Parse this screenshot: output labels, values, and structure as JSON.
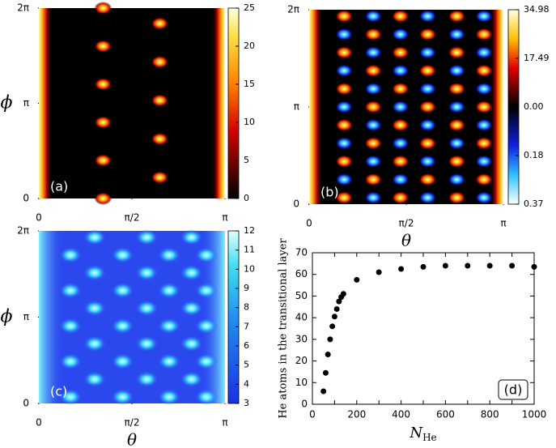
{
  "chart_data": [
    {
      "type": "heatmap",
      "panel_label": "(a)",
      "ylabel": "ϕ",
      "xlim": [
        0,
        3.14159
      ],
      "ylim": [
        0,
        6.28319
      ],
      "xticks": [
        0,
        {
          "value": 1.5708,
          "label": "π/2"
        },
        {
          "value": 3.14159,
          "label": "π"
        }
      ],
      "yticks": [
        0,
        {
          "value": 3.14159,
          "label": "π"
        },
        {
          "value": 6.28319,
          "label": "2π"
        }
      ],
      "clim": [
        0,
        25
      ],
      "cticks": [
        0,
        5,
        10,
        15,
        20,
        25
      ]
    },
    {
      "type": "heatmap",
      "panel_label": "(b)",
      "xlabel": "θ",
      "xlim": [
        0,
        3.14159
      ],
      "ylim": [
        0,
        6.28319
      ],
      "xticks": [
        0,
        {
          "value": 1.5708,
          "label": "π/2"
        },
        {
          "value": 3.14159,
          "label": "π"
        }
      ],
      "yticks": [
        0,
        {
          "value": 3.14159,
          "label": "π"
        },
        {
          "value": 6.28319,
          "label": "2π"
        }
      ],
      "cticks": [
        34.98,
        17.49,
        {
          "value": 0,
          "label": "0.00"
        },
        0.18,
        0.37
      ]
    },
    {
      "type": "heatmap",
      "panel_label": "(c)",
      "ylabel": "ϕ",
      "xlabel": "θ",
      "xlim": [
        0,
        3.14159
      ],
      "ylim": [
        0,
        6.28319
      ],
      "xticks": [
        0,
        {
          "value": 1.5708,
          "label": "π/2"
        },
        {
          "value": 3.14159,
          "label": "π"
        }
      ],
      "yticks": [
        0,
        {
          "value": 3.14159,
          "label": "π"
        },
        {
          "value": 6.28319,
          "label": "2π"
        }
      ],
      "clim": [
        3,
        12
      ],
      "cticks": [
        3,
        4,
        5,
        6,
        7,
        8,
        9,
        10,
        11,
        12
      ]
    },
    {
      "type": "scatter",
      "panel_label": "(d)",
      "ylabel": "He atoms in the transitional layer",
      "xlabel": "N",
      "xlabel_sub": "He",
      "color": "#000000",
      "x": [
        50,
        60,
        70,
        80,
        90,
        100,
        110,
        120,
        130,
        140,
        200,
        300,
        400,
        500,
        600,
        700,
        800,
        900,
        1000
      ],
      "values": [
        6,
        14.5,
        23,
        30,
        36,
        40.5,
        44,
        47.5,
        49.5,
        51,
        57.5,
        61,
        62.5,
        63.5,
        64,
        64,
        64,
        64,
        63.5
      ],
      "xlim": [
        0,
        1000
      ],
      "ylim": [
        0,
        70
      ],
      "xticks": [
        0,
        100,
        200,
        300,
        400,
        500,
        600,
        700,
        800,
        900,
        1000
      ],
      "yticks": [
        0,
        10,
        20,
        30,
        40,
        50,
        60,
        70
      ]
    }
  ]
}
